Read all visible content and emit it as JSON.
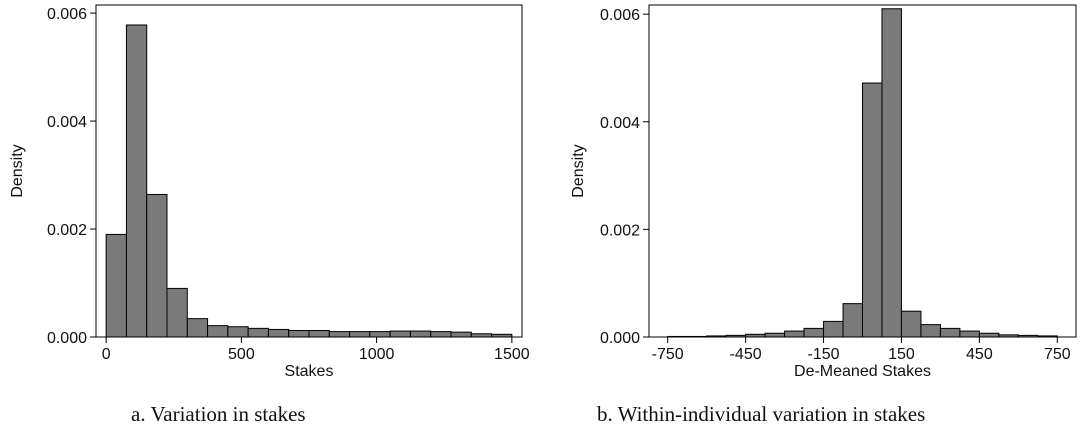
{
  "chart_data": [
    {
      "type": "bar",
      "title": "",
      "xlabel": "Stakes",
      "ylabel": "Density",
      "xlim": [
        -37.5,
        1537.5
      ],
      "ylim": [
        0,
        0.00615
      ],
      "xticks": [
        0,
        500,
        1000,
        1500
      ],
      "xtick_labels": [
        "0",
        "500",
        "1000",
        "1500"
      ],
      "yticks": [
        0,
        0.002,
        0.004,
        0.006
      ],
      "ytick_labels": [
        "0.000",
        "0.002",
        "0.004",
        "0.006"
      ],
      "bin_width": 75,
      "bin_starts": [
        0,
        75,
        150,
        225,
        300,
        375,
        450,
        525,
        600,
        675,
        750,
        825,
        900,
        975,
        1050,
        1125,
        1200,
        1275,
        1350,
        1425
      ],
      "values": [
        0.0019,
        0.00578,
        0.00264,
        0.0009,
        0.00034,
        0.00021,
        0.00019,
        0.00016,
        0.00014,
        0.00012,
        0.00012,
        0.0001,
        0.0001,
        0.0001,
        0.00011,
        0.00011,
        0.0001,
        9e-05,
        6e-05,
        5e-05
      ],
      "grid": false,
      "legend": "none",
      "bar_color": "#7a7a7a",
      "caption": "a. Variation in stakes"
    },
    {
      "type": "bar",
      "title": "",
      "xlabel": "De-Meaned Stakes",
      "ylabel": "Density",
      "xlim": [
        -822,
        822
      ],
      "ylim": [
        0,
        0.00617
      ],
      "xticks": [
        -750,
        -450,
        -150,
        150,
        450,
        750
      ],
      "xtick_labels": [
        "-750",
        "-450",
        "-150",
        "150",
        "450",
        "750"
      ],
      "yticks": [
        0,
        0.002,
        0.004,
        0.006
      ],
      "ytick_labels": [
        "0.000",
        "0.002",
        "0.004",
        "0.006"
      ],
      "bin_width": 75,
      "bin_starts": [
        -750,
        -675,
        -600,
        -525,
        -450,
        -375,
        -300,
        -225,
        -150,
        -75,
        0,
        75,
        150,
        225,
        300,
        375,
        450,
        525,
        600,
        675
      ],
      "values": [
        1e-05,
        1e-05,
        2e-05,
        3e-05,
        5e-05,
        7e-05,
        0.00011,
        0.00016,
        0.00029,
        0.00062,
        0.00472,
        0.0061,
        0.00048,
        0.00023,
        0.00016,
        0.00011,
        7e-05,
        4e-05,
        3e-05,
        2e-05
      ],
      "grid": false,
      "legend": "none",
      "bar_color": "#7a7a7a",
      "caption": "b. Within-individual variation in stakes"
    }
  ]
}
